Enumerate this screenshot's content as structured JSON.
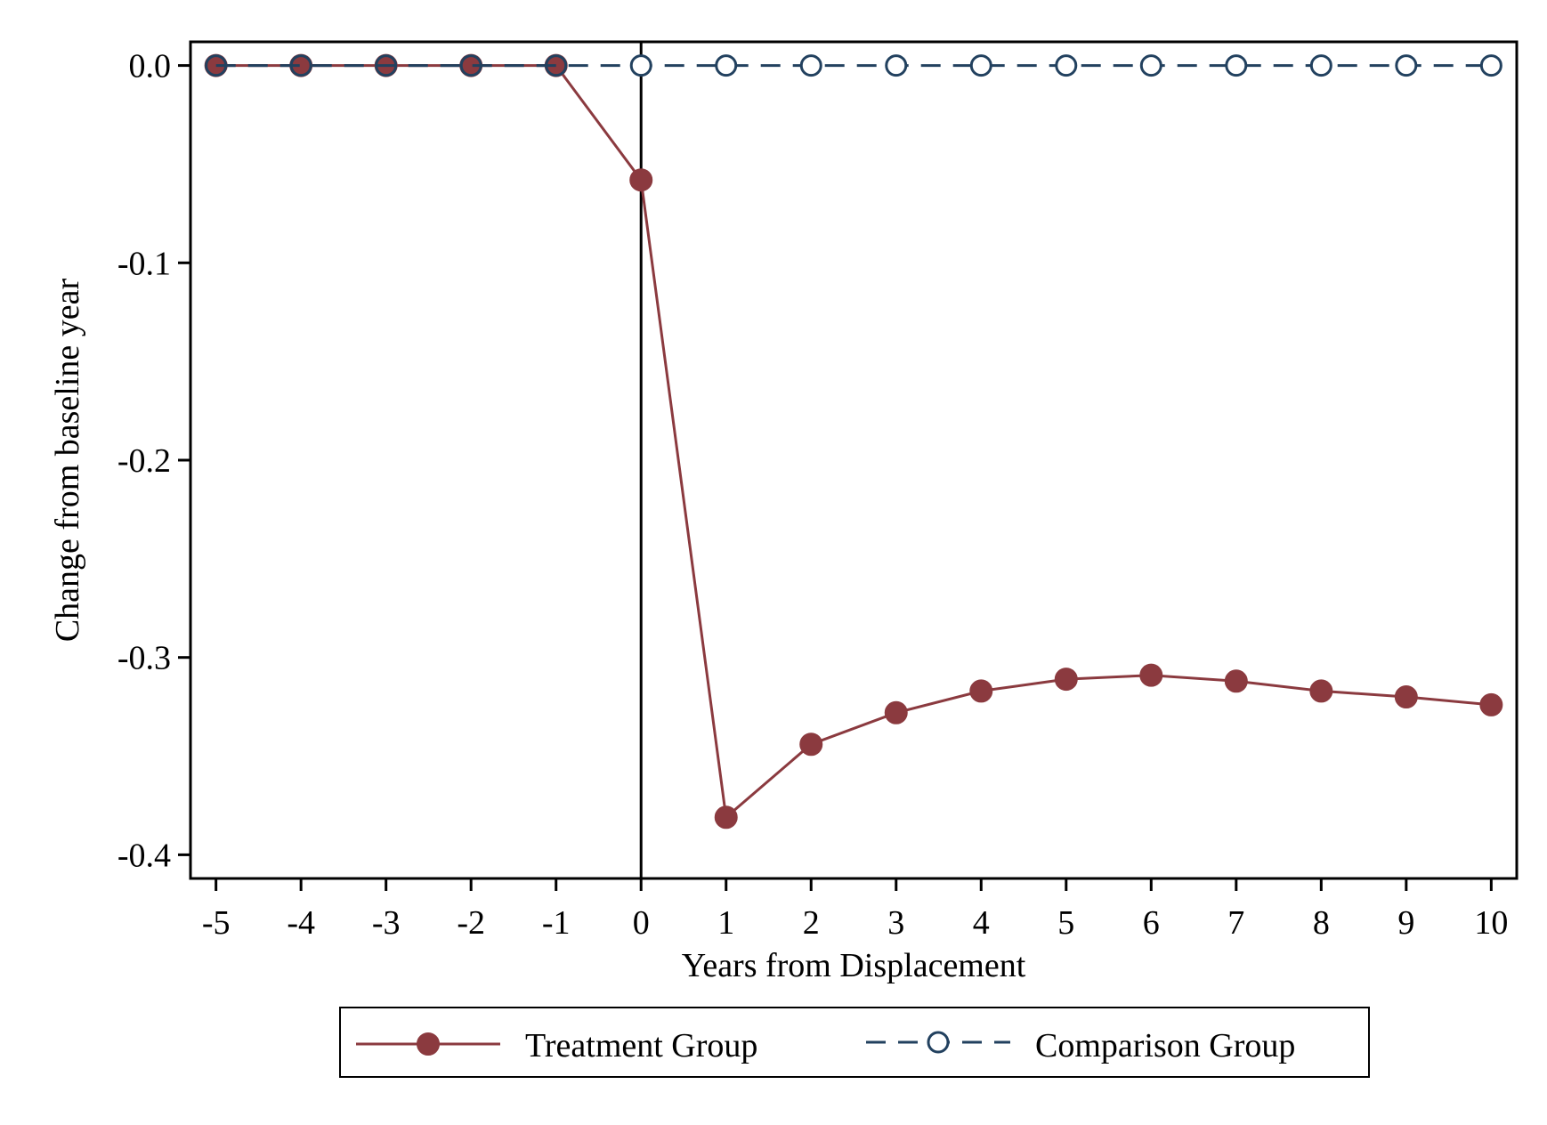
{
  "chart_data": {
    "type": "line",
    "xlabel": "Years from Displacement",
    "ylabel": "Change from baseline year",
    "x": [
      -5,
      -4,
      -3,
      -2,
      -1,
      0,
      1,
      2,
      3,
      4,
      5,
      6,
      7,
      8,
      9,
      10
    ],
    "x_tick_labels": [
      "-5",
      "-4",
      "-3",
      "-2",
      "-1",
      "0",
      "1",
      "2",
      "3",
      "4",
      "5",
      "6",
      "7",
      "8",
      "9",
      "10"
    ],
    "y_ticks": [
      0.0,
      -0.1,
      -0.2,
      -0.3,
      -0.4
    ],
    "y_tick_labels": [
      "0.0",
      "-0.1",
      "-0.2",
      "-0.3",
      "-0.4"
    ],
    "xlim": [
      -5.3,
      10.3
    ],
    "ylim": [
      -0.412,
      0.012
    ],
    "reference_line_x": 0,
    "grid": false,
    "legend_position": "bottom",
    "series": [
      {
        "name": "Treatment Group",
        "values": [
          0,
          0,
          0,
          0,
          0,
          -0.058,
          -0.381,
          -0.344,
          -0.328,
          -0.317,
          -0.311,
          -0.309,
          -0.312,
          -0.317,
          -0.32,
          -0.324
        ],
        "color": "#8b3a3f",
        "line_style": "solid",
        "marker": "filled-circle"
      },
      {
        "name": "Comparison Group",
        "values": [
          0,
          0,
          0,
          0,
          0,
          0,
          0,
          0,
          0,
          0,
          0,
          0,
          0,
          0,
          0,
          0
        ],
        "color": "#22415f",
        "line_style": "dashed",
        "marker": "hollow-circle"
      }
    ]
  }
}
